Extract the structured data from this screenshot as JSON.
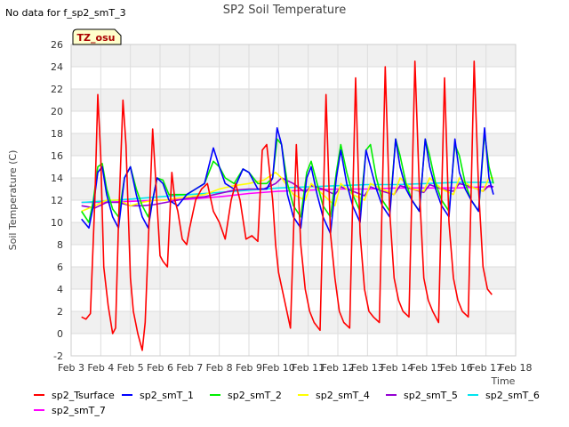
{
  "chart_data": {
    "type": "line",
    "title": "SP2 Soil Temperature",
    "no_data_note": "No data for f_sp2_smT_3",
    "badge": "TZ_osu",
    "xlabel": "Time",
    "ylabel": "Soil Temperature (C)",
    "xlim": [
      3,
      18
    ],
    "ylim": [
      -2,
      26
    ],
    "x_ticks": [
      3,
      4,
      5,
      6,
      7,
      8,
      9,
      10,
      11,
      12,
      13,
      14,
      15,
      16,
      17,
      18
    ],
    "x_tick_labels": [
      "Feb 3",
      "Feb 4",
      "Feb 5",
      "Feb 6",
      "Feb 7",
      "Feb 8",
      "Feb 9",
      "Feb 10",
      "Feb 11",
      "Feb 12",
      "Feb 13",
      "Feb 14",
      "Feb 15",
      "Feb 16",
      "Feb 17",
      "Feb 18"
    ],
    "y_ticks": [
      -2,
      0,
      2,
      4,
      6,
      8,
      10,
      12,
      14,
      16,
      18,
      20,
      22,
      24,
      26
    ],
    "y_tick_labels": [
      "-2",
      "0",
      "2",
      "4",
      "6",
      "8",
      "10",
      "12",
      "14",
      "16",
      "18",
      "20",
      "22",
      "24",
      "26"
    ],
    "grid": true,
    "legend_position": "bottom",
    "series": [
      {
        "name": "sp2_Tsurface",
        "color": "#ff0000",
        "x": [
          3.35,
          3.5,
          3.65,
          3.8,
          3.9,
          4.0,
          4.1,
          4.25,
          4.4,
          4.5,
          4.6,
          4.75,
          4.85,
          5.0,
          5.1,
          5.25,
          5.4,
          5.5,
          5.6,
          5.75,
          5.85,
          6.0,
          6.1,
          6.25,
          6.4,
          6.5,
          6.6,
          6.75,
          6.9,
          7.0,
          7.2,
          7.4,
          7.6,
          7.8,
          8.0,
          8.2,
          8.4,
          8.55,
          8.7,
          8.9,
          9.1,
          9.3,
          9.45,
          9.6,
          9.8,
          9.9,
          10.0,
          10.2,
          10.4,
          10.6,
          10.75,
          10.9,
          11.05,
          11.2,
          11.4,
          11.6,
          11.75,
          11.9,
          12.05,
          12.2,
          12.4,
          12.6,
          12.75,
          12.9,
          13.05,
          13.2,
          13.4,
          13.6,
          13.75,
          13.9,
          14.05,
          14.2,
          14.4,
          14.6,
          14.75,
          14.9,
          15.05,
          15.2,
          15.4,
          15.6,
          15.75,
          15.9,
          16.05,
          16.2,
          16.4,
          16.6,
          16.75,
          16.9,
          17.05,
          17.2
        ],
        "y": [
          1.5,
          1.3,
          1.8,
          12,
          21.5,
          16,
          6,
          2.5,
          0,
          0.5,
          10,
          21,
          17,
          5,
          2,
          0,
          -1.5,
          1,
          8,
          18.4,
          14,
          7,
          6.5,
          6,
          14.5,
          12,
          11,
          8.5,
          8,
          9.5,
          12,
          13,
          13.5,
          11,
          10,
          8.5,
          12,
          13.5,
          12,
          8.5,
          8.8,
          8.3,
          16.5,
          17,
          12,
          8,
          5.5,
          3,
          0.5,
          17,
          8,
          4,
          2,
          1,
          0.3,
          21.5,
          9,
          5,
          2,
          1,
          0.5,
          23,
          9,
          4,
          2,
          1.5,
          1,
          24,
          11,
          5,
          3,
          2,
          1.5,
          24.5,
          13,
          5,
          3,
          2,
          1,
          23,
          10,
          5,
          3,
          2,
          1.5,
          24.5,
          13,
          6,
          4,
          3.5
        ]
      },
      {
        "name": "sp2_smT_1",
        "color": "#0000ff",
        "x": [
          3.35,
          3.6,
          3.75,
          3.9,
          4.05,
          4.2,
          4.4,
          4.6,
          4.8,
          5.0,
          5.2,
          5.4,
          5.6,
          5.75,
          5.9,
          6.1,
          6.3,
          6.6,
          6.9,
          7.2,
          7.5,
          7.8,
          8.0,
          8.2,
          8.5,
          8.8,
          9.0,
          9.3,
          9.6,
          9.8,
          9.95,
          10.1,
          10.3,
          10.5,
          10.75,
          10.95,
          11.1,
          11.3,
          11.5,
          11.75,
          11.95,
          12.1,
          12.3,
          12.5,
          12.75,
          12.95,
          13.1,
          13.3,
          13.5,
          13.75,
          13.95,
          14.1,
          14.3,
          14.5,
          14.75,
          14.95,
          15.1,
          15.3,
          15.5,
          15.75,
          15.95,
          16.1,
          16.3,
          16.5,
          16.75,
          16.95,
          17.1,
          17.25
        ],
        "y": [
          10.3,
          9.5,
          11.5,
          14.5,
          15,
          12.5,
          10.5,
          9.5,
          14,
          15,
          12.5,
          10.5,
          9.5,
          12,
          14,
          13.5,
          12,
          11.5,
          12.5,
          13,
          13.5,
          16.7,
          15,
          13.5,
          13,
          14.8,
          14.5,
          13,
          13,
          14,
          18.5,
          17,
          12.5,
          10.5,
          9.5,
          14,
          15,
          12.5,
          10.5,
          9,
          14,
          16.5,
          13.5,
          11.5,
          10,
          16.5,
          15,
          13,
          11.5,
          10.5,
          17.5,
          15,
          13,
          12,
          11,
          17.5,
          15,
          13,
          11.5,
          10.5,
          17.5,
          14.5,
          13,
          12,
          11,
          18.5,
          14,
          12.5
        ]
      },
      {
        "name": "sp2_smT_2",
        "color": "#00ee00",
        "x": [
          3.35,
          3.6,
          3.75,
          3.9,
          4.05,
          4.2,
          4.4,
          4.6,
          4.8,
          5.0,
          5.2,
          5.4,
          5.6,
          5.75,
          5.9,
          6.1,
          6.3,
          6.6,
          6.9,
          7.2,
          7.5,
          7.8,
          8.0,
          8.2,
          8.5,
          8.8,
          9.0,
          9.3,
          9.6,
          9.8,
          9.95,
          10.1,
          10.3,
          10.5,
          10.75,
          10.95,
          11.1,
          11.3,
          11.5,
          11.75,
          11.95,
          12.1,
          12.3,
          12.5,
          12.75,
          12.95,
          13.1,
          13.3,
          13.5,
          13.75,
          13.95,
          14.1,
          14.3,
          14.5,
          14.75,
          14.95,
          15.1,
          15.3,
          15.5,
          15.75,
          15.95,
          16.1,
          16.3,
          16.5,
          16.75,
          16.95,
          17.1,
          17.25
        ],
        "y": [
          11,
          10,
          12,
          15,
          15.3,
          13,
          11.2,
          10.5,
          14,
          15,
          13,
          11.5,
          10.5,
          12,
          14,
          13.8,
          12.5,
          12.5,
          12.5,
          13,
          13.5,
          15.5,
          15,
          14,
          13.5,
          14.8,
          14.5,
          13.5,
          13.5,
          14,
          17.5,
          17,
          13.5,
          11.5,
          10.5,
          14.5,
          15.5,
          13.5,
          11.5,
          10.5,
          14.5,
          17,
          14.5,
          12.5,
          11,
          16.5,
          17,
          14,
          12,
          11,
          17.5,
          16,
          13.5,
          12,
          11,
          17.5,
          16,
          13.5,
          12,
          11,
          17,
          16,
          13.5,
          12,
          11,
          18,
          15,
          13.5
        ]
      },
      {
        "name": "sp2_smT_4",
        "color": "#ffff00",
        "x": [
          3.35,
          3.8,
          4.2,
          4.6,
          5.0,
          5.4,
          5.8,
          6.2,
          6.6,
          7.0,
          7.5,
          8.0,
          8.5,
          9.0,
          9.5,
          9.9,
          10.1,
          10.5,
          10.9,
          11.1,
          11.5,
          11.9,
          12.1,
          12.5,
          12.9,
          13.1,
          13.5,
          13.9,
          14.1,
          14.5,
          14.9,
          15.1,
          15.5,
          15.9,
          16.1,
          16.5,
          16.9,
          17.1,
          17.25
        ],
        "y": [
          11,
          11.5,
          12,
          12,
          11.5,
          11.8,
          12,
          12,
          12.2,
          12.3,
          12.5,
          13,
          13.3,
          13.5,
          13.8,
          14.5,
          14,
          12.5,
          12,
          13.5,
          12.5,
          11.5,
          13.5,
          12.5,
          12,
          13.5,
          13,
          12.5,
          14,
          13,
          12.8,
          14,
          13,
          12.5,
          14,
          13.2,
          12.8,
          14,
          14
        ]
      },
      {
        "name": "sp2_smT_5",
        "color": "#9400d3",
        "x": [
          3.35,
          3.8,
          4.2,
          4.6,
          5.0,
          5.4,
          5.8,
          6.2,
          6.6,
          7.0,
          7.5,
          8.0,
          8.5,
          9.0,
          9.5,
          9.9,
          10.1,
          10.5,
          10.9,
          11.1,
          11.5,
          11.9,
          12.1,
          12.5,
          12.9,
          13.1,
          13.5,
          13.9,
          14.1,
          14.5,
          14.9,
          15.1,
          15.5,
          15.9,
          16.1,
          16.5,
          16.9,
          17.1,
          17.25
        ],
        "y": [
          11.5,
          11.3,
          11.8,
          11.8,
          11.5,
          11.5,
          11.6,
          11.8,
          12,
          12.2,
          12.3,
          12.6,
          12.9,
          13,
          13,
          13.5,
          14,
          13.5,
          12.7,
          13.3,
          13,
          12.5,
          13.2,
          12.8,
          12.4,
          13.2,
          12.8,
          12.5,
          13.3,
          13,
          12.7,
          13.4,
          13,
          12.8,
          13.5,
          13.2,
          12.8,
          13.3,
          13.2
        ]
      },
      {
        "name": "sp2_smT_6",
        "color": "#00e5ee",
        "x": [
          3.35,
          4.0,
          5.0,
          6.0,
          7.0,
          8.0,
          9.0,
          10.0,
          11.0,
          12.0,
          13.0,
          14.0,
          15.0,
          16.0,
          17.0,
          17.25
        ],
        "y": [
          11.8,
          11.9,
          12.1,
          12.3,
          12.5,
          12.7,
          12.9,
          13.1,
          13.2,
          13.3,
          13.4,
          13.4,
          13.5,
          13.6,
          13.6,
          13.6
        ]
      },
      {
        "name": "sp2_smT_7",
        "color": "#ff00ff",
        "x": [
          3.35,
          4.0,
          5.0,
          6.0,
          7.0,
          8.0,
          9.0,
          10.0,
          11.0,
          12.0,
          13.0,
          14.0,
          15.0,
          16.0,
          17.0,
          17.25
        ],
        "y": [
          11.8,
          11.8,
          11.9,
          12.0,
          12.1,
          12.3,
          12.6,
          12.8,
          12.9,
          13.0,
          13.0,
          13.1,
          13.1,
          13.1,
          13.2,
          13.2
        ]
      }
    ]
  }
}
